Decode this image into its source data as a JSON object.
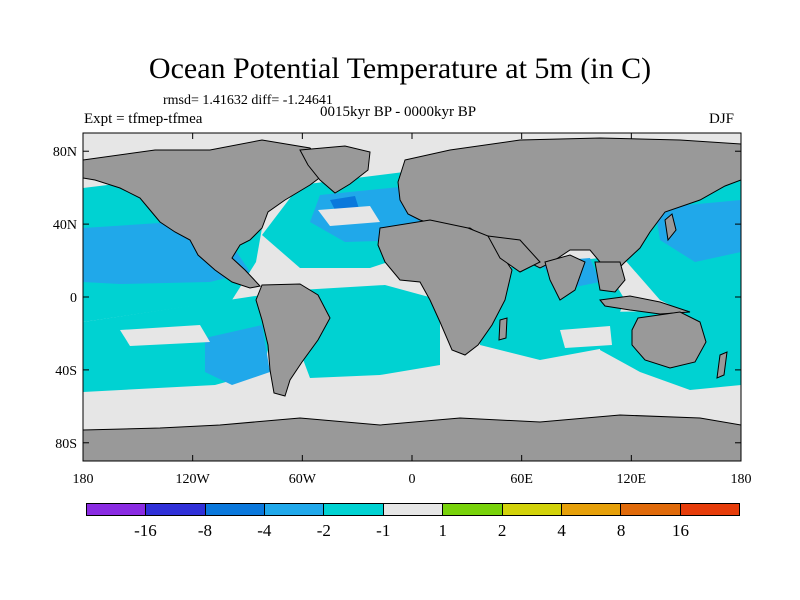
{
  "title": "Ocean Potential Temperature at 5m (in C)",
  "stats": "rmsd= 1.41632 diff= -1.24641",
  "experiment": "Expt = tfmep-tfmea",
  "period": "0015kyr BP - 0000kyr BP",
  "season": "DJF",
  "map": {
    "projection": "cylindrical-equidistant",
    "lon_range": [
      -180,
      180
    ],
    "lat_range": [
      -90,
      90
    ],
    "x_ticks": [
      "180",
      "120W",
      "60W",
      "0",
      "60E",
      "120E",
      "180"
    ],
    "y_ticks": [
      "80N",
      "40N",
      "0",
      "40S",
      "80S"
    ],
    "land_color": "#999999",
    "ocean_background_color": "#e6e6e6"
  },
  "colorbar": {
    "colors": [
      "#8a2be2",
      "#3030d8",
      "#0a78dc",
      "#20a8ea",
      "#00d2d2",
      "#e6e6e6",
      "#78d20a",
      "#d2d20a",
      "#e6a00a",
      "#e06a0a",
      "#e63c0a"
    ],
    "labels": [
      "-16",
      "-8",
      "-4",
      "-2",
      "-1",
      "1",
      "2",
      "4",
      "8",
      "16"
    ]
  }
}
